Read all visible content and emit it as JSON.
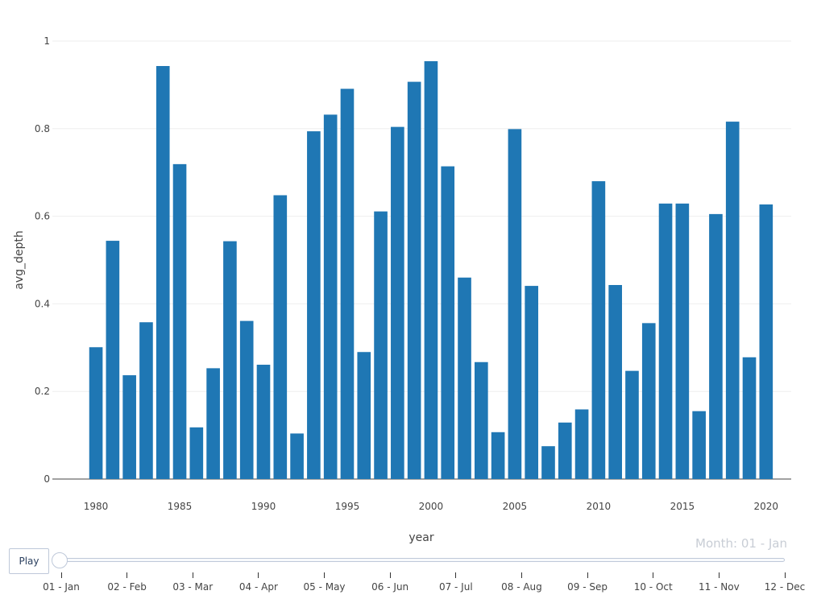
{
  "chart_data": {
    "type": "bar",
    "xlabel": "year",
    "ylabel": "avg_depth",
    "ylim": [
      0,
      1
    ],
    "yticks": [
      "0",
      "0.2",
      "0.4",
      "0.6",
      "0.8",
      "1"
    ],
    "xticks": [
      "1980",
      "1985",
      "1990",
      "1995",
      "2000",
      "2005",
      "2010",
      "2015",
      "2020"
    ],
    "bar_color": "#1f77b4",
    "grid": true,
    "x": [
      1980,
      1981,
      1982,
      1983,
      1984,
      1985,
      1986,
      1987,
      1988,
      1989,
      1990,
      1991,
      1992,
      1993,
      1994,
      1995,
      1996,
      1997,
      1998,
      1999,
      2000,
      2001,
      2002,
      2003,
      2004,
      2005,
      2006,
      2007,
      2008,
      2009,
      2010,
      2011,
      2012,
      2013,
      2014,
      2015,
      2016,
      2017,
      2018,
      2019,
      2020
    ],
    "values": [
      0.301,
      0.544,
      0.237,
      0.358,
      0.943,
      0.719,
      0.118,
      0.253,
      0.543,
      0.361,
      0.261,
      0.648,
      0.104,
      0.794,
      0.832,
      0.891,
      0.29,
      0.611,
      0.804,
      0.907,
      0.954,
      0.714,
      0.46,
      0.267,
      0.107,
      0.799,
      0.441,
      0.075,
      0.129,
      0.159,
      0.68,
      0.443,
      0.247,
      0.356,
      0.629,
      0.629,
      0.155,
      0.605,
      0.816,
      0.278,
      0.627
    ]
  },
  "animation": {
    "play_label": "Play",
    "current_label": "Month: 01 - Jan",
    "steps": [
      "01 - Jan",
      "02 - Feb",
      "03 - Mar",
      "04 - Apr",
      "05 - May",
      "06 - Jun",
      "07 - Jul",
      "08 - Aug",
      "09 - Sep",
      "10 - Oct",
      "11 - Nov",
      "12 - Dec"
    ]
  }
}
